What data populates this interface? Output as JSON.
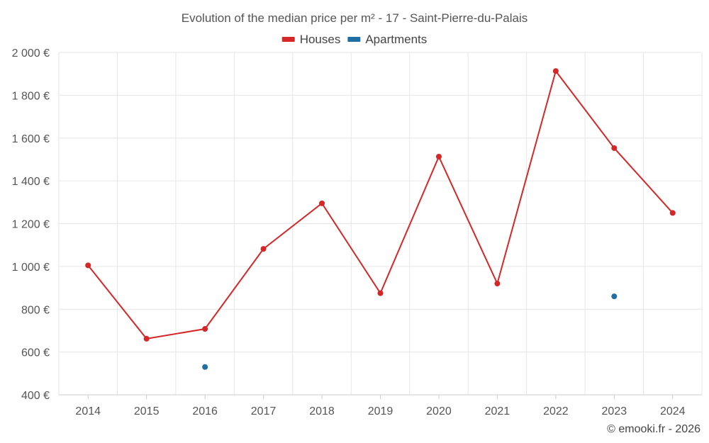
{
  "chart_data": {
    "type": "line",
    "title": "Evolution of the median price per m² - 17 - Saint-Pierre-du-Palais",
    "categories": [
      "2014",
      "2015",
      "2016",
      "2017",
      "2018",
      "2019",
      "2020",
      "2021",
      "2022",
      "2023",
      "2024"
    ],
    "y_ticks": [
      400,
      600,
      800,
      1000,
      1200,
      1400,
      1600,
      1800,
      2000
    ],
    "y_tick_labels": [
      "400 €",
      "600 €",
      "800 €",
      "1 000 €",
      "1 200 €",
      "1 400 €",
      "1 600 €",
      "1 800 €",
      "2 000 €"
    ],
    "ylim": [
      400,
      2000
    ],
    "grid": true,
    "legend_position": "top-center",
    "series": [
      {
        "name": "Houses",
        "color": "#d62728",
        "values": [
          1005,
          662,
          708,
          1082,
          1295,
          875,
          1513,
          920,
          1913,
          1553,
          1250
        ]
      },
      {
        "name": "Apartments",
        "color": "#1f6fa3",
        "values": [
          null,
          null,
          530,
          null,
          null,
          null,
          null,
          null,
          null,
          860,
          null
        ]
      }
    ]
  },
  "credit": "© emooki.fr - 2026"
}
